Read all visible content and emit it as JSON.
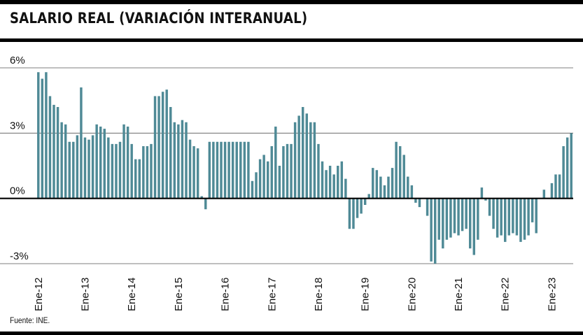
{
  "header": {
    "title": "SALARIO REAL (VARIACIÓN INTERANUAL)"
  },
  "footer": {
    "source": "Fuente: INE."
  },
  "colors": {
    "bar": "#4f8a96",
    "zero_line": "#000000",
    "grid": "#555555"
  },
  "chart_data": {
    "type": "bar",
    "title": "SALARIO REAL (VARIACIÓN INTERANUAL)",
    "xlabel": "",
    "ylabel": "",
    "ylim": [
      -3,
      6
    ],
    "grid": true,
    "y_ticks": [
      {
        "value": 6,
        "label": "6%"
      },
      {
        "value": 3,
        "label": "3%"
      },
      {
        "value": 0,
        "label": "0%"
      },
      {
        "value": -3,
        "label": "-3%"
      }
    ],
    "x_tick_labels": [
      "Ene-12",
      "Ene-13",
      "Ene-14",
      "Ene-15",
      "Ene-16",
      "Ene-17",
      "Ene-18",
      "Ene-19",
      "Ene-20",
      "Ene-21",
      "Ene-22",
      "Ene-23"
    ],
    "x_tick_every": 12,
    "series": [
      {
        "values": [
          5.8,
          5.5,
          5.8,
          4.7,
          4.3,
          4.2,
          3.5,
          3.4,
          2.6,
          2.6,
          2.9,
          5.1,
          2.8,
          2.7,
          2.9,
          3.4,
          3.3,
          3.2,
          2.8,
          2.5,
          2.5,
          2.6,
          3.4,
          3.3,
          2.5,
          1.8,
          1.8,
          2.4,
          2.4,
          2.5,
          4.7,
          4.7,
          4.9,
          5.0,
          4.2,
          3.5,
          3.4,
          3.6,
          3.5,
          2.7,
          2.4,
          2.3,
          0.1,
          -0.5,
          2.6,
          2.6,
          2.6,
          2.6,
          2.6,
          2.6,
          2.6,
          2.6,
          2.6,
          2.6,
          2.6,
          0.8,
          1.2,
          1.8,
          2.0,
          1.7,
          2.4,
          3.3,
          1.5,
          2.4,
          2.5,
          2.5,
          3.5,
          3.8,
          4.2,
          3.9,
          3.5,
          3.5,
          2.5,
          1.7,
          1.3,
          1.5,
          1.1,
          1.5,
          1.7,
          0.9,
          -1.4,
          -1.4,
          -0.9,
          -0.7,
          -0.3,
          0.2,
          1.4,
          1.3,
          1.0,
          0.6,
          1.0,
          1.4,
          2.6,
          2.4,
          2.0,
          1.0,
          0.6,
          -0.2,
          -0.4,
          0.0,
          -0.8,
          -2.9,
          -3.0,
          -1.9,
          -2.3,
          -1.9,
          -1.8,
          -1.6,
          -1.7,
          -1.5,
          -1.4,
          -2.3,
          -2.6,
          -1.9,
          0.5,
          -0.1,
          -0.8,
          -1.4,
          -1.8,
          -1.7,
          -2.0,
          -1.7,
          -1.6,
          -1.7,
          -2.0,
          -1.9,
          -1.7,
          -1.1,
          -1.6,
          0.0,
          0.4,
          0.0,
          0.7,
          1.1,
          1.1,
          2.4,
          2.8,
          3.0
        ]
      }
    ]
  }
}
